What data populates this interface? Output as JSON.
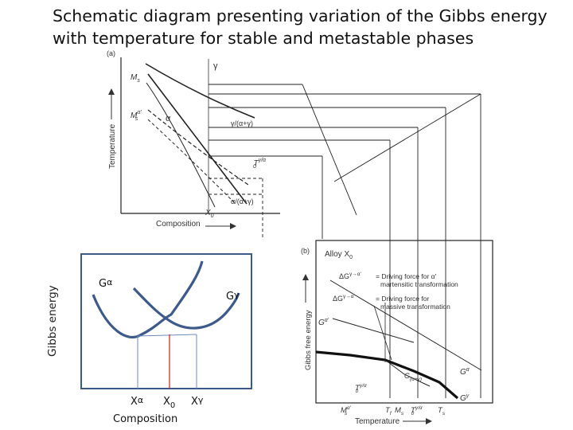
{
  "title": "Schematic diagram presenting variation of the Gibbs energy with temperature for stable and metastable phases",
  "side_label": "Gibbs energy",
  "panel_a": {
    "tag": "(a)",
    "y_axis": "Temperature",
    "x_axis": "Composition",
    "x0": "X",
    "x0_sub": "0",
    "ms_sup": "α'",
    "labels": {
      "gamma": "γ",
      "alpha": "α",
      "ms": "M",
      "ms_sub": "s",
      "gamma_alpha_gamma": "γ/(α+γ)",
      "t0": "T",
      "t0_sub": "0",
      "t0_sup": "γ/α",
      "alpha_alpha_gamma": "α/(α+γ)"
    }
  },
  "panel_b": {
    "tag": "(b)",
    "alloy": "Alloy X",
    "alloy_sub": "0",
    "y_axis": "Gibbs free energy",
    "x_axis": "Temperature",
    "dg1": "ΔG",
    "dg1_sup": "γ→α'",
    "dg1_text1": "= Driving force for α'",
    "dg1_text2": "martensitic transformation",
    "dg2": "ΔG",
    "dg2_sup": "γ→α",
    "dg2_text1": "= Driving force for",
    "dg2_text2": "massive transformation",
    "g_alpha_prime": "G",
    "g_alpha_prime_sup": "α'",
    "g_alpha": "G",
    "g_alpha_sup": "α",
    "g_gamma": "G",
    "g_gamma_sup": "γ",
    "g_ag": "G",
    "g_ag_sub": "(α+γ)",
    "t0": "T",
    "t0_sub": "0",
    "t0_sup": "γ/α",
    "ticks": [
      "M",
      "T",
      "M",
      "T",
      "T"
    ],
    "tick_subs": [
      "s",
      "f",
      "s",
      "0",
      "s"
    ],
    "tick_sups": [
      "α'",
      "",
      "",
      "γ/α",
      ""
    ]
  },
  "inset": {
    "g_alpha": "G",
    "g_alpha_sup": "α",
    "g_gamma": "G",
    "g_gamma_sup": "γ",
    "x_alpha": "X",
    "x_alpha_sup": "α",
    "x0": "X",
    "x0_sub": "0",
    "x_gamma": "X",
    "x_gamma_sup": "γ",
    "x_axis": "Composition"
  },
  "colors": {
    "curve_blue": "#3d5a8a",
    "inset_border": "#3c5a88",
    "tie_line": "#6b8bb8",
    "red_line": "#d11a1a"
  }
}
